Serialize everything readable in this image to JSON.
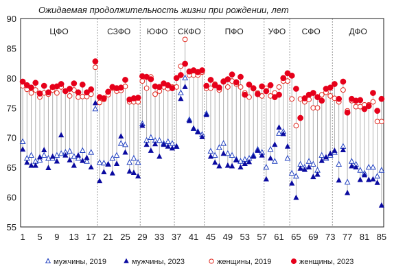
{
  "chart_data": {
    "type": "scatter",
    "title": "Ожидаемая продолжительность жизни при рождении, лет",
    "xlabel": "",
    "ylabel": "",
    "ylim": [
      55,
      90
    ],
    "yticks": [
      55,
      60,
      65,
      70,
      75,
      80,
      85,
      90
    ],
    "xlim": [
      0.5,
      85.5
    ],
    "xticks": [
      1,
      5,
      9,
      13,
      17,
      21,
      25,
      29,
      33,
      37,
      41,
      45,
      49,
      53,
      57,
      61,
      65,
      69,
      73,
      77,
      81,
      85
    ],
    "grid": "vertical dotted lines at district boundaries",
    "legend_position": "bottom",
    "district_boundaries": [
      18.5,
      28.5,
      36.5,
      43.5,
      57.5,
      63.5,
      73.5
    ],
    "districts": [
      {
        "label": "ЦФО",
        "x_center": 9.5
      },
      {
        "label": "СЗФО",
        "x_center": 23.5
      },
      {
        "label": "ЮФО",
        "x_center": 32.5
      },
      {
        "label": "СКФО",
        "x_center": 40
      },
      {
        "label": "ПФО",
        "x_center": 50.5
      },
      {
        "label": "УФО",
        "x_center": 60.5
      },
      {
        "label": "СФО",
        "x_center": 68.5
      },
      {
        "label": "ДФО",
        "x_center": 79.5
      }
    ],
    "x": [
      1,
      2,
      3,
      4,
      5,
      6,
      7,
      8,
      9,
      10,
      11,
      12,
      13,
      14,
      15,
      16,
      17,
      18,
      19,
      20,
      21,
      22,
      23,
      24,
      25,
      26,
      27,
      28,
      29,
      30,
      31,
      32,
      33,
      34,
      35,
      36,
      37,
      38,
      39,
      40,
      41,
      42,
      43,
      44,
      45,
      46,
      47,
      48,
      49,
      50,
      51,
      52,
      53,
      54,
      55,
      56,
      57,
      58,
      59,
      60,
      61,
      62,
      63,
      64,
      65,
      66,
      67,
      68,
      69,
      70,
      71,
      72,
      73,
      74,
      75,
      76,
      77,
      78,
      79,
      80,
      81,
      82,
      83,
      84,
      85
    ],
    "series": [
      {
        "name": "мужчины, 2019",
        "marker": "triangle-open",
        "color": "#1f3fbf",
        "values": [
          69.3,
          66.5,
          67.0,
          66.0,
          66.2,
          67.0,
          66.5,
          66.5,
          67.0,
          67.3,
          67.5,
          67.7,
          66.8,
          66.5,
          67.8,
          66.0,
          67.5,
          74.8,
          65.8,
          65.7,
          65.5,
          66.5,
          67.0,
          69.0,
          68.8,
          65.8,
          66.5,
          65.8,
          72.3,
          69.5,
          70.0,
          69.5,
          69.5,
          69.0,
          69.3,
          69.0,
          68.5,
          77.5,
          80.0,
          73.0,
          71.5,
          71.0,
          70.5,
          74.0,
          67.7,
          67.0,
          68.3,
          69.0,
          67.3,
          67.0,
          66.3,
          66.0,
          66.3,
          66.5,
          67.0,
          68.0,
          67.5,
          65.0,
          68.0,
          66.0,
          70.7,
          71.0,
          66.5,
          64.0,
          63.5,
          65.5,
          65.0,
          66.0,
          65.5,
          64.5,
          67.0,
          66.5,
          67.0,
          67.5,
          65.5,
          68.5,
          62.5,
          66.0,
          65.5,
          64.5,
          64.0,
          65.0,
          65.0,
          63.5,
          64.5
        ]
      },
      {
        "name": "мужчины, 2023",
        "marker": "triangle-filled",
        "color": "#0a0aa0",
        "values": [
          68.0,
          65.8,
          65.3,
          65.3,
          66.7,
          67.9,
          64.9,
          66.8,
          66.0,
          70.4,
          67.0,
          66.2,
          65.3,
          67.0,
          66.1,
          66.6,
          65.0,
          75.8,
          62.7,
          64.2,
          65.5,
          64.0,
          65.6,
          70.2,
          67.5,
          64.3,
          64.1,
          63.5,
          72.0,
          68.8,
          67.8,
          68.9,
          66.8,
          68.8,
          68.5,
          68.2,
          68.5,
          76.5,
          78.5,
          72.8,
          71.5,
          70.9,
          70.1,
          73.8,
          66.8,
          65.8,
          65.2,
          67.3,
          65.3,
          65.2,
          66.2,
          65.0,
          65.6,
          65.9,
          66.8,
          67.8,
          67.0,
          63.0,
          66.5,
          68.8,
          71.7,
          70.6,
          68.5,
          62.3,
          59.9,
          64.8,
          64.6,
          65.0,
          63.4,
          63.8,
          66.1,
          66.7,
          67.3,
          67.8,
          62.8,
          67.9,
          60.7,
          65.2,
          65.0,
          62.9,
          63.7,
          62.9,
          63.0,
          62.4,
          58.6
        ]
      },
      {
        "name": "женщины, 2019",
        "marker": "circle-open",
        "color": "#e0261c",
        "values": [
          78.7,
          78.1,
          77.5,
          78.0,
          76.8,
          77.5,
          77.3,
          78.0,
          77.5,
          78.5,
          77.8,
          77.0,
          78.0,
          76.8,
          76.9,
          76.9,
          77.3,
          81.8,
          75.9,
          76.4,
          77.2,
          78.3,
          77.8,
          77.9,
          78.6,
          76.0,
          76.0,
          76.0,
          79.5,
          78.3,
          80.2,
          77.3,
          77.8,
          78.5,
          78.2,
          78.5,
          78.5,
          82.0,
          86.5,
          80.5,
          80.5,
          80.5,
          81.0,
          78.3,
          78.3,
          79.0,
          78.0,
          79.5,
          78.5,
          79.5,
          79.0,
          78.5,
          77.5,
          76.8,
          78.2,
          77.5,
          77.0,
          78.3,
          77.0,
          77.5,
          78.5,
          79.5,
          79.5,
          76.5,
          72.0,
          76.5,
          76.0,
          76.4,
          75.0,
          75.0,
          77.2,
          77.6,
          77.0,
          76.6,
          76.0,
          78.0,
          74.5,
          76.2,
          75.2,
          75.2,
          75.5,
          75.5,
          76.0,
          72.7,
          72.7
        ]
      },
      {
        "name": "женщины, 2023",
        "marker": "circle-filled",
        "color": "#e6001a",
        "values": [
          79.4,
          78.8,
          78.4,
          79.2,
          77.4,
          78.7,
          77.6,
          78.5,
          78.6,
          79.0,
          77.8,
          78.2,
          79.1,
          77.6,
          78.9,
          77.6,
          78.1,
          82.8,
          76.8,
          76.6,
          77.7,
          78.5,
          78.3,
          78.4,
          79.7,
          76.4,
          76.6,
          76.7,
          80.3,
          80.2,
          79.8,
          78.6,
          78.5,
          79.1,
          78.8,
          78.3,
          80.0,
          80.5,
          82.4,
          81.1,
          81.3,
          81.0,
          81.3,
          78.7,
          79.7,
          78.8,
          78.4,
          79.4,
          79.8,
          80.6,
          79.3,
          80.2,
          77.2,
          78.9,
          78.3,
          77.3,
          78.6,
          77.8,
          78.8,
          76.8,
          77.2,
          80.0,
          80.8,
          80.4,
          78.2,
          73.3,
          76.6,
          77.2,
          77.5,
          76.8,
          76.2,
          78.2,
          78.4,
          79.0,
          76.5,
          79.4,
          74.2,
          76.5,
          76.2,
          76.3,
          74.8,
          75.3,
          77.5,
          74.5,
          76.5
        ]
      }
    ]
  }
}
